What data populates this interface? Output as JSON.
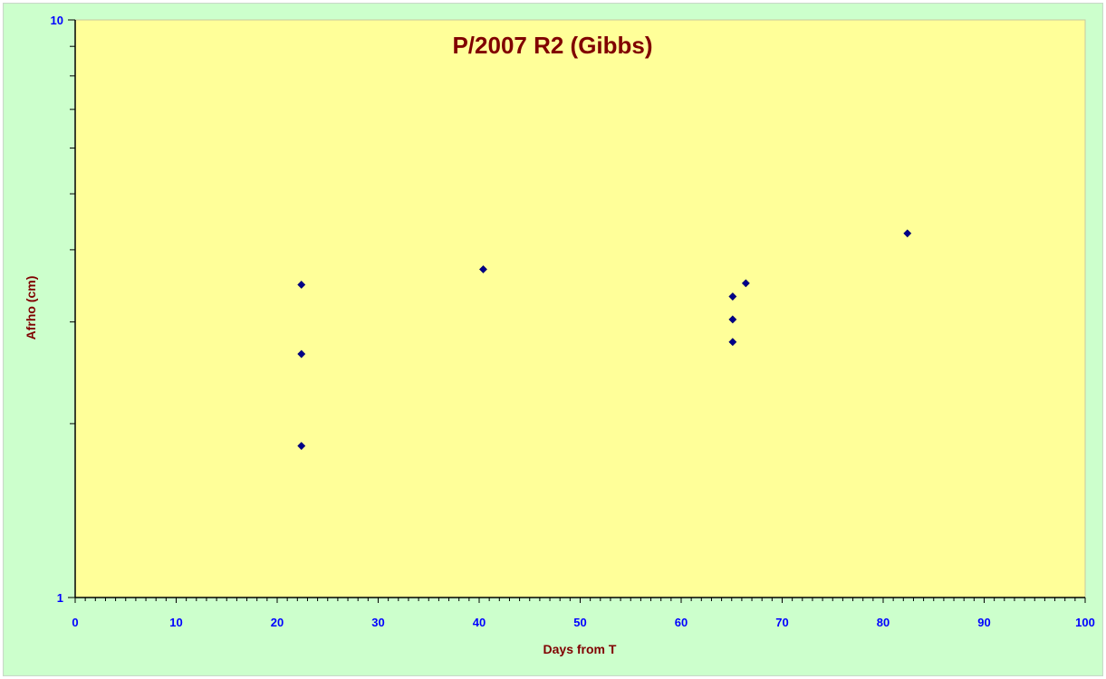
{
  "chart_data": {
    "type": "scatter",
    "title": "P/2007 R2 (Gibbs)",
    "xlabel": "Days from T",
    "ylabel": "Afrho (cm)",
    "xlim": [
      0,
      100
    ],
    "ylim": [
      1,
      10
    ],
    "yscale": "log",
    "x_ticks": [
      0,
      10,
      20,
      30,
      40,
      50,
      60,
      70,
      80,
      90,
      100
    ],
    "y_ticks": [
      1,
      10
    ],
    "grid": false,
    "legend": "none",
    "series": [
      {
        "x": [
          22.4,
          22.4,
          22.4,
          40.4,
          65.1,
          65.1,
          65.1,
          66.4,
          82.4
        ],
        "y": [
          3.48,
          2.64,
          1.83,
          3.7,
          3.32,
          3.03,
          2.77,
          3.5,
          4.27
        ],
        "marker": "diamond",
        "color": "#00008b"
      }
    ],
    "colors": {
      "plot_background": "#ffff99",
      "chart_background": "#ccffcc",
      "title": "#800000",
      "axis_titles": "#800000",
      "tick_labels": "#0000ff",
      "marker": "#00008b",
      "axis_line": "#000000"
    }
  }
}
